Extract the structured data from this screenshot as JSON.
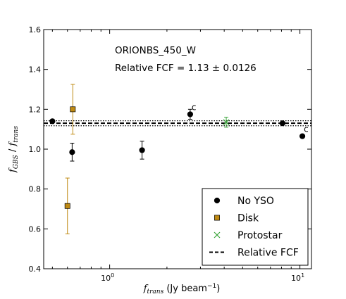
{
  "chart_data": {
    "type": "scatter",
    "x_scale": "log",
    "xlim": [
      0.45,
      11.5
    ],
    "ylim": [
      0.4,
      1.6
    ],
    "x_major_ticks": [
      {
        "value": 1,
        "base": "10",
        "exp": "0"
      },
      {
        "value": 10,
        "base": "10",
        "exp": "1"
      }
    ],
    "x_minor_ticks": [
      0.5,
      0.6,
      0.7,
      0.8,
      0.9,
      2,
      3,
      4,
      5,
      6,
      7,
      8,
      9
    ],
    "y_ticks": [
      0.4,
      0.6,
      0.8,
      1.0,
      1.2,
      1.4,
      1.6
    ],
    "y_tick_labels": [
      "0.4",
      "0.6",
      "0.8",
      "1.0",
      "1.2",
      "1.4",
      "1.6"
    ],
    "xlabel": {
      "var": "f",
      "sub": "trans",
      "unit": " (Jy beam",
      "unit_exp": "−1",
      "unit_end": ")"
    },
    "ylabel": {
      "var1": "f",
      "sub1": "GBS",
      "sep": " / ",
      "var2": "f",
      "sub2": "trans"
    },
    "annotations": {
      "line1": "ORIONBS_450_W",
      "line2": "Relative FCF = 1.13 ± 0.0126"
    },
    "relative_fcf": {
      "value": 1.13,
      "err": 0.0126
    },
    "series": [
      {
        "name": "No YSO",
        "marker": "circle",
        "color": "#000000",
        "points": [
          {
            "x": 0.5,
            "y": 1.14,
            "err": 0.0
          },
          {
            "x": 0.635,
            "y": 0.985,
            "err": 0.045
          },
          {
            "x": 1.48,
            "y": 0.995,
            "err": 0.045
          },
          {
            "x": 2.65,
            "y": 1.175,
            "err": 0.025,
            "label": "c"
          },
          {
            "x": 8.1,
            "y": 1.13,
            "err": 0.0
          },
          {
            "x": 10.3,
            "y": 1.065,
            "err": 0.0,
            "label": "c"
          }
        ]
      },
      {
        "name": "Disk",
        "marker": "square",
        "color": "#c08a12",
        "points": [
          {
            "x": 0.64,
            "y": 1.2,
            "err": 0.125
          },
          {
            "x": 0.6,
            "y": 0.715,
            "err": 0.14
          }
        ]
      },
      {
        "name": "Protostar",
        "marker": "x",
        "color": "#3aa53a",
        "points": [
          {
            "x": 4.1,
            "y": 1.135,
            "err": 0.025
          }
        ]
      }
    ],
    "legend": {
      "position": "lower-right",
      "entries": [
        {
          "label": "No YSO",
          "marker": "circle",
          "color": "#000000"
        },
        {
          "label": "Disk",
          "marker": "square",
          "color": "#c08a12"
        },
        {
          "label": "Protostar",
          "marker": "x",
          "color": "#3aa53a"
        },
        {
          "label": "Relative FCF",
          "marker": "dash",
          "color": "#000000"
        }
      ]
    }
  }
}
